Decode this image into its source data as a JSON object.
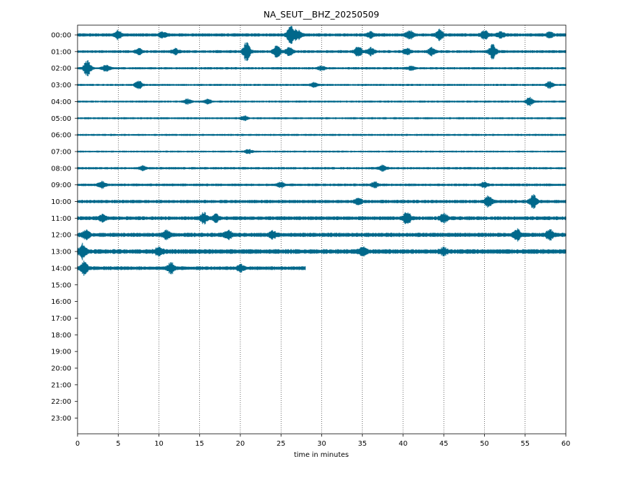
{
  "chart_data": {
    "type": "line",
    "title": "NA_SEUT__BHZ_20250509",
    "xlabel": "time in minutes",
    "ylabel": "",
    "xlim": [
      0,
      60
    ],
    "x_ticks": [
      0,
      5,
      10,
      15,
      20,
      25,
      30,
      35,
      40,
      45,
      50,
      55,
      60
    ],
    "y_tick_labels": [
      "00:00",
      "01:00",
      "02:00",
      "03:00",
      "04:00",
      "05:00",
      "06:00",
      "07:00",
      "08:00",
      "09:00",
      "10:00",
      "11:00",
      "12:00",
      "13:00",
      "14:00",
      "15:00",
      "16:00",
      "17:00",
      "18:00",
      "19:00",
      "20:00",
      "21:00",
      "22:00",
      "23:00"
    ],
    "grid": "vertical dotted at x ticks",
    "trace_color": "#00688b",
    "series": [
      {
        "hour": "00:00",
        "end_minute": 60,
        "noise_level": 0.35,
        "events": [
          [
            5,
            0.8
          ],
          [
            10.5,
            0.5
          ],
          [
            26.2,
            1.8
          ],
          [
            27,
            0.9
          ],
          [
            36,
            0.5
          ],
          [
            40.8,
            0.8
          ],
          [
            44.5,
            1.0
          ],
          [
            50,
            0.8
          ],
          [
            52,
            0.5
          ],
          [
            58,
            0.5
          ]
        ]
      },
      {
        "hour": "01:00",
        "end_minute": 60,
        "noise_level": 0.3,
        "events": [
          [
            7.5,
            0.6
          ],
          [
            12,
            0.5
          ],
          [
            20.8,
            2.0
          ],
          [
            24.5,
            1.2
          ],
          [
            26,
            0.8
          ],
          [
            34.5,
            1.0
          ],
          [
            36,
            0.7
          ],
          [
            40.5,
            0.6
          ],
          [
            43.5,
            0.7
          ],
          [
            51,
            1.4
          ]
        ]
      },
      {
        "hour": "02:00",
        "end_minute": 60,
        "noise_level": 0.25,
        "events": [
          [
            1.2,
            1.6
          ],
          [
            3.5,
            0.6
          ],
          [
            30,
            0.4
          ],
          [
            41,
            0.4
          ]
        ]
      },
      {
        "hour": "03:00",
        "end_minute": 60,
        "noise_level": 0.22,
        "events": [
          [
            7.5,
            0.8
          ],
          [
            29,
            0.4
          ],
          [
            58,
            0.6
          ]
        ]
      },
      {
        "hour": "04:00",
        "end_minute": 60,
        "noise_level": 0.22,
        "events": [
          [
            13.5,
            0.5
          ],
          [
            16,
            0.4
          ],
          [
            55.5,
            0.8
          ]
        ]
      },
      {
        "hour": "05:00",
        "end_minute": 60,
        "noise_level": 0.22,
        "events": [
          [
            20.5,
            0.4
          ]
        ]
      },
      {
        "hour": "06:00",
        "end_minute": 60,
        "noise_level": 0.22,
        "events": []
      },
      {
        "hour": "07:00",
        "end_minute": 60,
        "noise_level": 0.2,
        "events": [
          [
            21,
            0.4
          ]
        ]
      },
      {
        "hour": "08:00",
        "end_minute": 60,
        "noise_level": 0.25,
        "events": [
          [
            37.5,
            0.6
          ],
          [
            8,
            0.4
          ]
        ]
      },
      {
        "hour": "09:00",
        "end_minute": 60,
        "noise_level": 0.28,
        "events": [
          [
            3,
            0.6
          ],
          [
            25,
            0.5
          ],
          [
            36.5,
            0.5
          ],
          [
            50,
            0.5
          ]
        ]
      },
      {
        "hour": "10:00",
        "end_minute": 60,
        "noise_level": 0.35,
        "events": [
          [
            34.5,
            0.6
          ],
          [
            50.5,
            1.0
          ],
          [
            56,
            1.2
          ]
        ]
      },
      {
        "hour": "11:00",
        "end_minute": 60,
        "noise_level": 0.4,
        "events": [
          [
            3,
            0.6
          ],
          [
            15.5,
            1.0
          ],
          [
            17,
            0.6
          ],
          [
            40.5,
            1.2
          ],
          [
            45,
            0.8
          ]
        ]
      },
      {
        "hour": "12:00",
        "end_minute": 60,
        "noise_level": 0.45,
        "events": [
          [
            1,
            0.8
          ],
          [
            11,
            0.8
          ],
          [
            18.5,
            0.8
          ],
          [
            24,
            0.6
          ],
          [
            54,
            1.0
          ],
          [
            58,
            0.9
          ]
        ]
      },
      {
        "hour": "13:00",
        "end_minute": 60,
        "noise_level": 0.5,
        "events": [
          [
            0.6,
            1.4
          ],
          [
            10,
            0.8
          ],
          [
            35,
            0.7
          ],
          [
            45,
            0.6
          ]
        ]
      },
      {
        "hour": "14:00",
        "end_minute": 28,
        "noise_level": 0.4,
        "events": [
          [
            0.8,
            1.2
          ],
          [
            11.5,
            1.0
          ],
          [
            20,
            0.6
          ]
        ]
      }
    ]
  }
}
